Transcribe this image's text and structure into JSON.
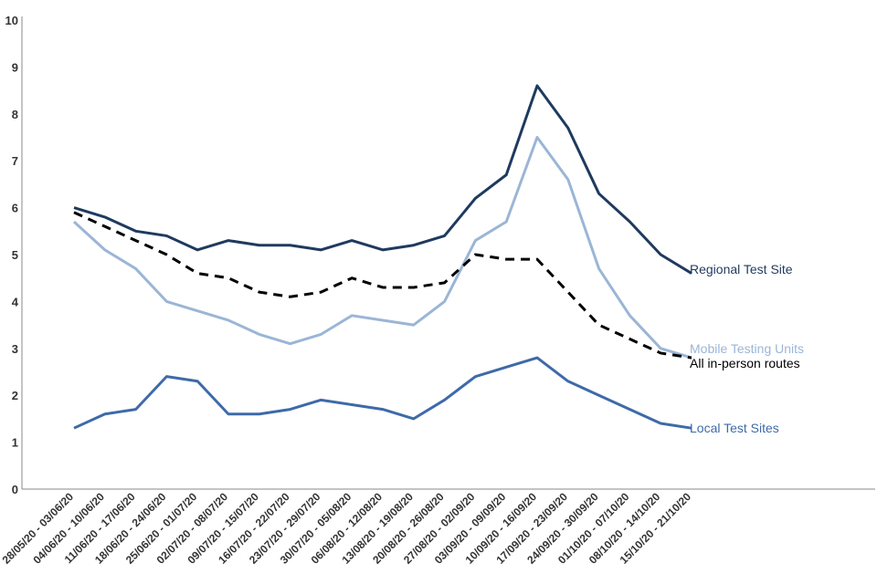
{
  "chart_data": {
    "type": "line",
    "title": "",
    "xlabel": "",
    "ylabel": "",
    "ylim": [
      0,
      10
    ],
    "yticks": [
      0,
      1,
      2,
      3,
      4,
      5,
      6,
      7,
      8,
      9,
      10
    ],
    "grid": false,
    "legend": "direct labels at line ends",
    "categories": [
      "28/05/20 - 03/06/20",
      "04/06/20 - 10/06/20",
      "11/06/20 - 17/06/20",
      "18/06/20 - 24/06/20",
      "25/06/20 - 01/07/20",
      "02/07/20 - 08/07/20",
      "09/07/20 - 15/07/20",
      "16/07/20 - 22/07/20",
      "23/07/20 - 29/07/20",
      "30/07/20 - 05/08/20",
      "06/08/20 - 12/08/20",
      "13/08/20 - 19/08/20",
      "20/08/20 - 26/08/20",
      "27/08/20 - 02/09/20",
      "03/09/20 - 09/09/20",
      "10/09/20 - 16/09/20",
      "17/09/20 - 23/09/20",
      "24/09/20 - 30/09/20",
      "01/10/20 - 07/10/20",
      "08/10/20 - 14/10/20",
      "15/10/20 - 21/10/20"
    ],
    "series": [
      {
        "name": "Regional Test Site",
        "color": "#1f3a5f",
        "dashed": false,
        "values": [
          6.0,
          5.8,
          5.5,
          5.4,
          5.1,
          5.3,
          5.2,
          5.2,
          5.1,
          5.3,
          5.1,
          5.2,
          5.4,
          6.2,
          6.7,
          8.6,
          7.7,
          6.3,
          5.7,
          5.0,
          4.6
        ]
      },
      {
        "name": "Mobile Testing Units",
        "color": "#9bb5d6",
        "dashed": false,
        "values": [
          5.7,
          5.1,
          4.7,
          4.0,
          3.8,
          3.6,
          3.3,
          3.1,
          3.3,
          3.7,
          3.6,
          3.5,
          4.0,
          5.3,
          5.7,
          7.5,
          6.6,
          4.7,
          3.7,
          3.0,
          2.8
        ]
      },
      {
        "name": "All in-person routes",
        "color": "#000000",
        "dashed": true,
        "values": [
          5.9,
          5.6,
          5.3,
          5.0,
          4.6,
          4.5,
          4.2,
          4.1,
          4.2,
          4.5,
          4.3,
          4.3,
          4.4,
          5.0,
          4.9,
          4.9,
          4.2,
          3.5,
          3.2,
          2.9,
          2.8
        ]
      },
      {
        "name": "Local Test Sites",
        "color": "#3e6aa8",
        "dashed": false,
        "values": [
          1.3,
          1.6,
          1.7,
          2.4,
          2.3,
          1.6,
          1.6,
          1.7,
          1.9,
          1.8,
          1.7,
          1.5,
          1.9,
          2.4,
          2.6,
          2.8,
          2.3,
          2.0,
          1.7,
          1.4,
          1.3
        ]
      }
    ]
  }
}
